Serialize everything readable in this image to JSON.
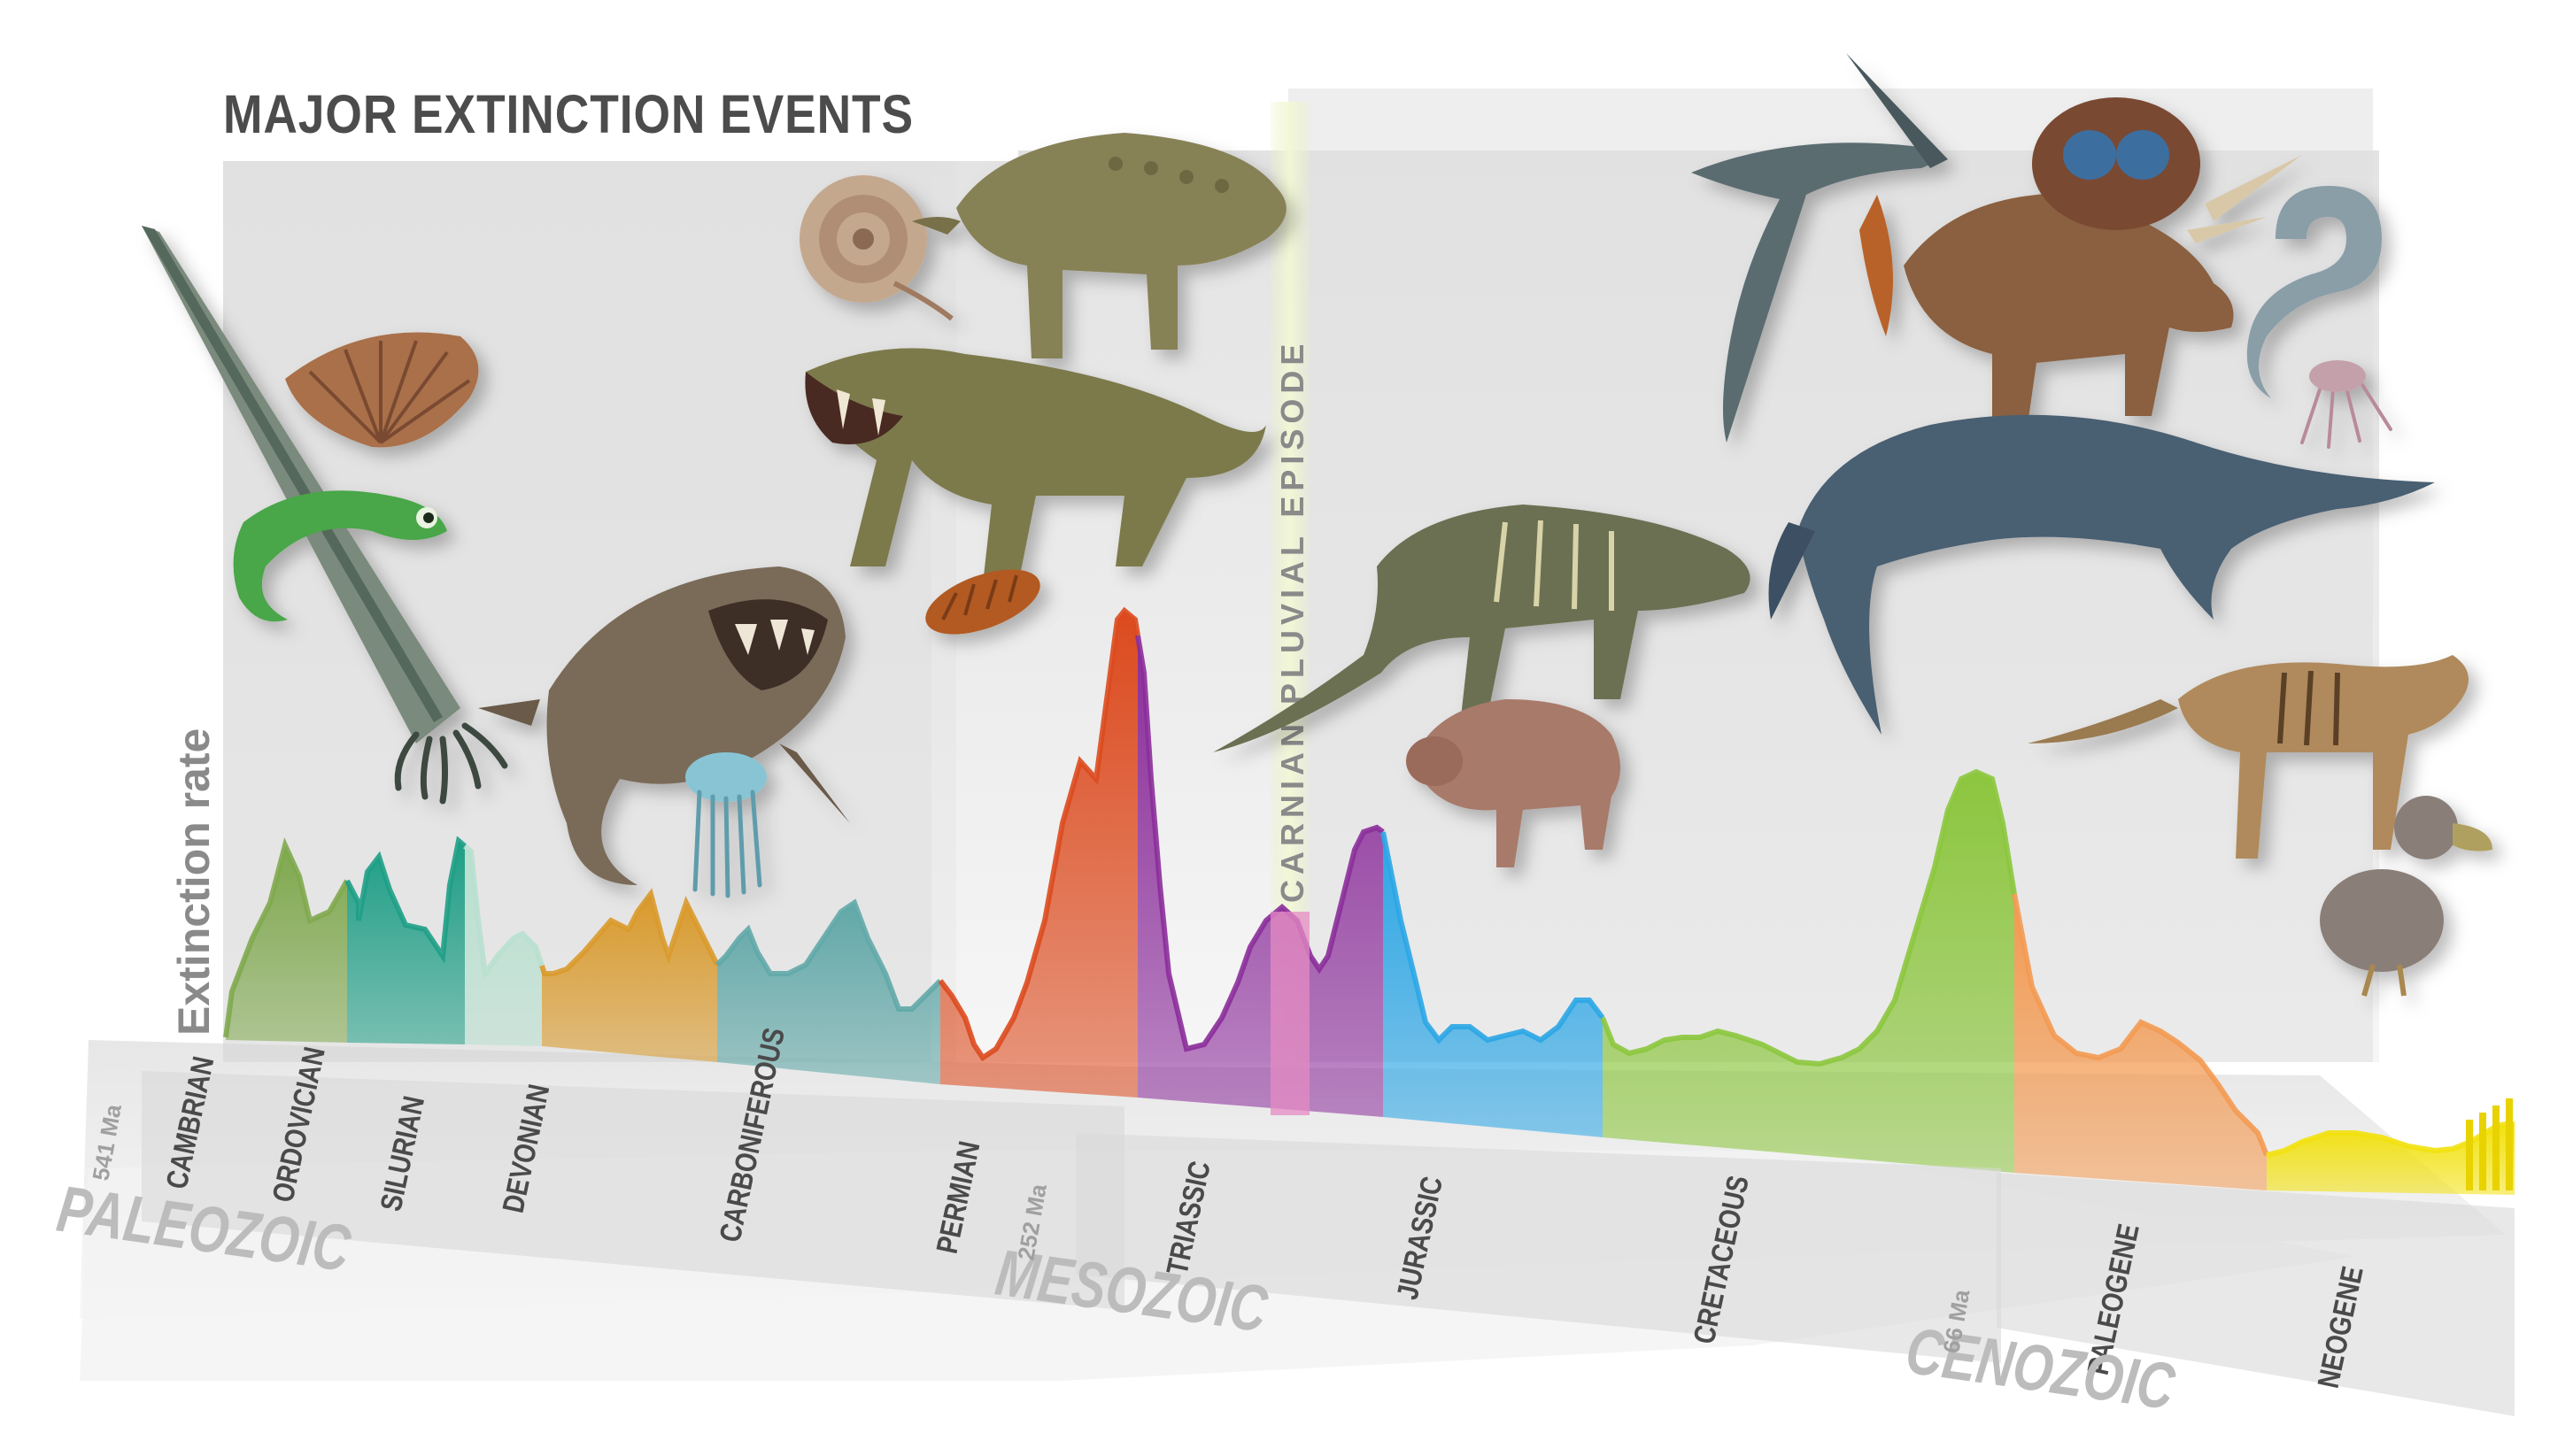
{
  "title": "MAJOR EXTINCTION EVENTS",
  "axis_label": "Extinction rate",
  "episode_label": "CARNIAN PLUVIAL EPISODE",
  "periods": [
    {
      "name": "CAMBRIAN",
      "color": "#7fa84e"
    },
    {
      "name": "ORDOVICIAN",
      "color": "#1e9e86"
    },
    {
      "name": "SILURIAN",
      "color": "#b8e0cf"
    },
    {
      "name": "DEVONIAN",
      "color": "#d99a2c"
    },
    {
      "name": "CARBONIFEROUS",
      "color": "#62a8a8"
    },
    {
      "name": "PERMIAN",
      "color": "#dc4a1e"
    },
    {
      "name": "TRIASSIC",
      "color": "#8b2d9a"
    },
    {
      "name": "JURASSIC",
      "color": "#2ba6e6"
    },
    {
      "name": "CRETACEOUS",
      "color": "#8cc63e"
    },
    {
      "name": "PALEOGENE",
      "color": "#f39a52"
    },
    {
      "name": "NEOGENE",
      "color": "#f2e10e"
    }
  ],
  "eras": [
    {
      "name": "PALEOZOIC"
    },
    {
      "name": "MESOZOIC"
    },
    {
      "name": "CENOZOIC"
    }
  ],
  "boundaries": [
    {
      "label": "541 Ma"
    },
    {
      "label": "252 Ma"
    },
    {
      "label": "66 Ma"
    }
  ],
  "illustrations": [
    {
      "name": "orthocone-nautiloid",
      "icon": "cone-shell-icon",
      "color": "#6c8070"
    },
    {
      "name": "brachiopod",
      "icon": "fan-shell-icon",
      "color": "#a8704a"
    },
    {
      "name": "conodont-fish",
      "icon": "eel-icon",
      "color": "#4aa348"
    },
    {
      "name": "dunkleosteus",
      "icon": "armored-fish-icon",
      "color": "#7a6a58"
    },
    {
      "name": "jellyfish",
      "icon": "jellyfish-icon",
      "color": "#74b2c4"
    },
    {
      "name": "ammonite-permian",
      "icon": "ammonite-icon",
      "color": "#b79a82"
    },
    {
      "name": "scutosaurus",
      "icon": "reptile-icon",
      "color": "#837b55"
    },
    {
      "name": "gorgonopsid",
      "icon": "beast-icon",
      "color": "#7c7a4c"
    },
    {
      "name": "trilobite",
      "icon": "trilobite-icon",
      "color": "#b25a22"
    },
    {
      "name": "rauisuchian",
      "icon": "crocodilian-icon",
      "color": "#6c7052"
    },
    {
      "name": "dicynodont",
      "icon": "dicynodont-icon",
      "color": "#a87a6a"
    },
    {
      "name": "pterosaur",
      "icon": "pterosaur-icon",
      "color": "#5a6c70"
    },
    {
      "name": "triceratops",
      "icon": "ceratopsian-icon",
      "color": "#8a6040"
    },
    {
      "name": "ammonite-cretaceous",
      "icon": "ammonite-icon",
      "color": "#8a9ea8"
    },
    {
      "name": "mosasaur",
      "icon": "marine-reptile-icon",
      "color": "#4a5e72"
    },
    {
      "name": "thylacine",
      "icon": "thylacine-icon",
      "color": "#b08a5c"
    },
    {
      "name": "dodo",
      "icon": "dodo-icon",
      "color": "#8a7e78"
    }
  ]
}
